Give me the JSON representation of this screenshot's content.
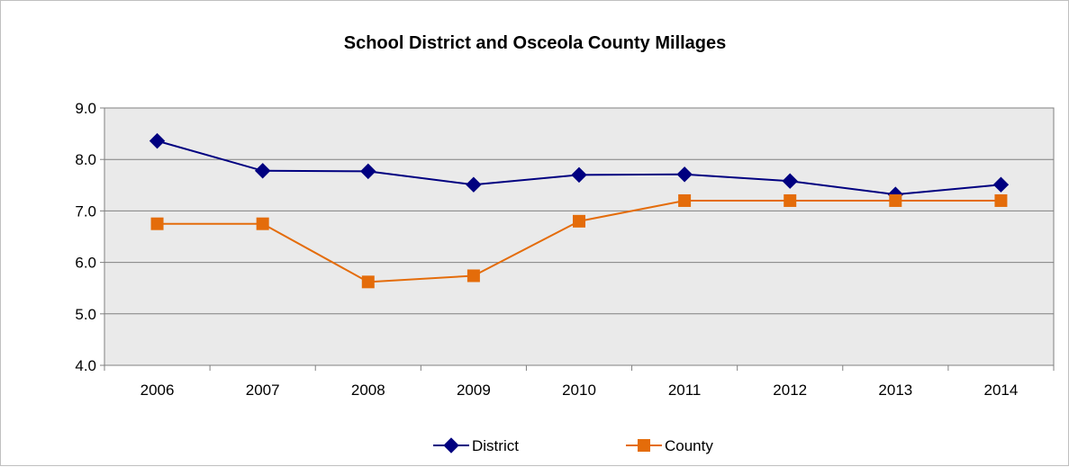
{
  "chart_data": {
    "type": "line",
    "title": "School District and Osceola County Millages",
    "xlabel": "",
    "ylabel": "",
    "categories": [
      "2006",
      "2007",
      "2008",
      "2009",
      "2010",
      "2011",
      "2012",
      "2013",
      "2014"
    ],
    "ylim": [
      4.0,
      9.0
    ],
    "yticks": [
      "4.0",
      "5.0",
      "6.0",
      "7.0",
      "8.0",
      "9.0"
    ],
    "grid": true,
    "legend_position": "bottom",
    "series": [
      {
        "name": "District",
        "color": "#000080",
        "marker": "diamond",
        "values": [
          8.36,
          7.78,
          7.77,
          7.51,
          7.7,
          7.71,
          7.58,
          7.32,
          7.51
        ]
      },
      {
        "name": "County",
        "color": "#E46C0A",
        "marker": "square",
        "values": [
          6.75,
          6.75,
          5.62,
          5.74,
          6.8,
          7.2,
          7.2,
          7.2,
          7.2
        ]
      }
    ]
  }
}
